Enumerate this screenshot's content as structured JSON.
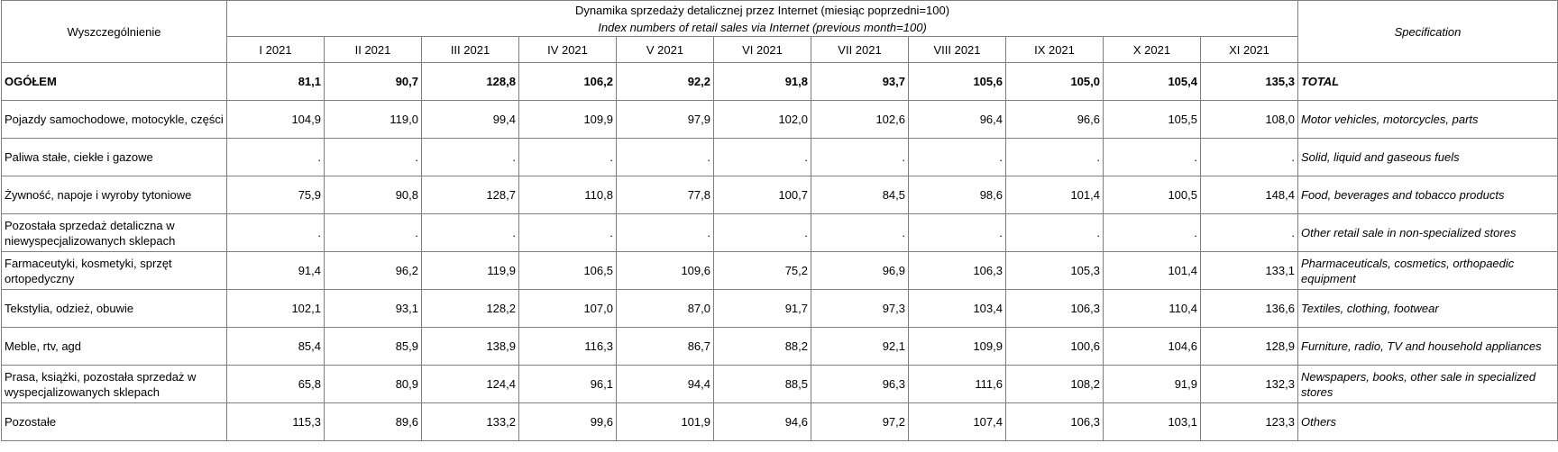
{
  "table": {
    "left_header": "Wyszczególnienie",
    "right_header": "Specification",
    "title": "Dynamika sprzedaży detalicznej przez Internet (miesiąc poprzedni=100)",
    "subtitle": "Index numbers of retail sales via Internet (previous month=100)",
    "months": [
      "I 2021",
      "II 2021",
      "III 2021",
      "IV 2021",
      "V 2021",
      "VI 2021",
      "VII 2021",
      "VIII 2021",
      "IX 2021",
      "X 2021",
      "XI 2021"
    ],
    "rows": [
      {
        "label": "OGÓŁEM",
        "spec": "TOTAL",
        "values": [
          "81,1",
          "90,7",
          "128,8",
          "106,2",
          "92,2",
          "91,8",
          "93,7",
          "105,6",
          "105,0",
          "105,4",
          "135,3"
        ]
      },
      {
        "label": "Pojazdy samochodowe, motocykle, części",
        "spec": "Motor vehicles, motorcycles, parts",
        "values": [
          "104,9",
          "119,0",
          "99,4",
          "109,9",
          "97,9",
          "102,0",
          "102,6",
          "96,4",
          "96,6",
          "105,5",
          "108,0"
        ]
      },
      {
        "label": "Paliwa stałe, ciekłe i gazowe",
        "spec": "Solid, liquid and gaseous fuels",
        "values": [
          ".",
          ".",
          ".",
          ".",
          ".",
          ".",
          ".",
          ".",
          ".",
          ".",
          "."
        ]
      },
      {
        "label": "Żywność, napoje i wyroby tytoniowe",
        "spec": "Food, beverages and tobacco products",
        "values": [
          "75,9",
          "90,8",
          "128,7",
          "110,8",
          "77,8",
          "100,7",
          "84,5",
          "98,6",
          "101,4",
          "100,5",
          "148,4"
        ]
      },
      {
        "label": "Pozostała sprzedaż detaliczna w niewyspecjalizowanych sklepach",
        "spec": "Other retail sale in non-specialized stores",
        "values": [
          ".",
          ".",
          ".",
          ".",
          ".",
          ".",
          ".",
          ".",
          ".",
          ".",
          "."
        ]
      },
      {
        "label": "Farmaceutyki, kosmetyki, sprzęt ortopedyczny",
        "spec": "Pharmaceuticals, cosmetics, orthopaedic equipment",
        "values": [
          "91,4",
          "96,2",
          "119,9",
          "106,5",
          "109,6",
          "75,2",
          "96,9",
          "106,3",
          "105,3",
          "101,4",
          "133,1"
        ]
      },
      {
        "label": "Tekstylia, odzież, obuwie",
        "spec": "Textiles, clothing, footwear",
        "values": [
          "102,1",
          "93,1",
          "128,2",
          "107,0",
          "87,0",
          "91,7",
          "97,3",
          "103,4",
          "106,3",
          "110,4",
          "136,6"
        ]
      },
      {
        "label": "Meble, rtv, agd",
        "spec": "Furniture, radio, TV and household appliances",
        "values": [
          "85,4",
          "85,9",
          "138,9",
          "116,3",
          "86,7",
          "88,2",
          "92,1",
          "109,9",
          "100,6",
          "104,6",
          "128,9"
        ]
      },
      {
        "label": "Prasa, książki, pozostała sprzedaż w wyspecjalizowanych sklepach",
        "spec": "Newspapers, books, other sale in specialized stores",
        "values": [
          "65,8",
          "80,9",
          "124,4",
          "96,1",
          "94,4",
          "88,5",
          "96,3",
          "111,6",
          "108,2",
          "91,9",
          "132,3"
        ]
      },
      {
        "label": "Pozostałe",
        "spec": "Others",
        "values": [
          "115,3",
          "89,6",
          "133,2",
          "99,6",
          "101,9",
          "94,6",
          "97,2",
          "107,4",
          "106,3",
          "103,1",
          "123,3"
        ]
      }
    ]
  }
}
